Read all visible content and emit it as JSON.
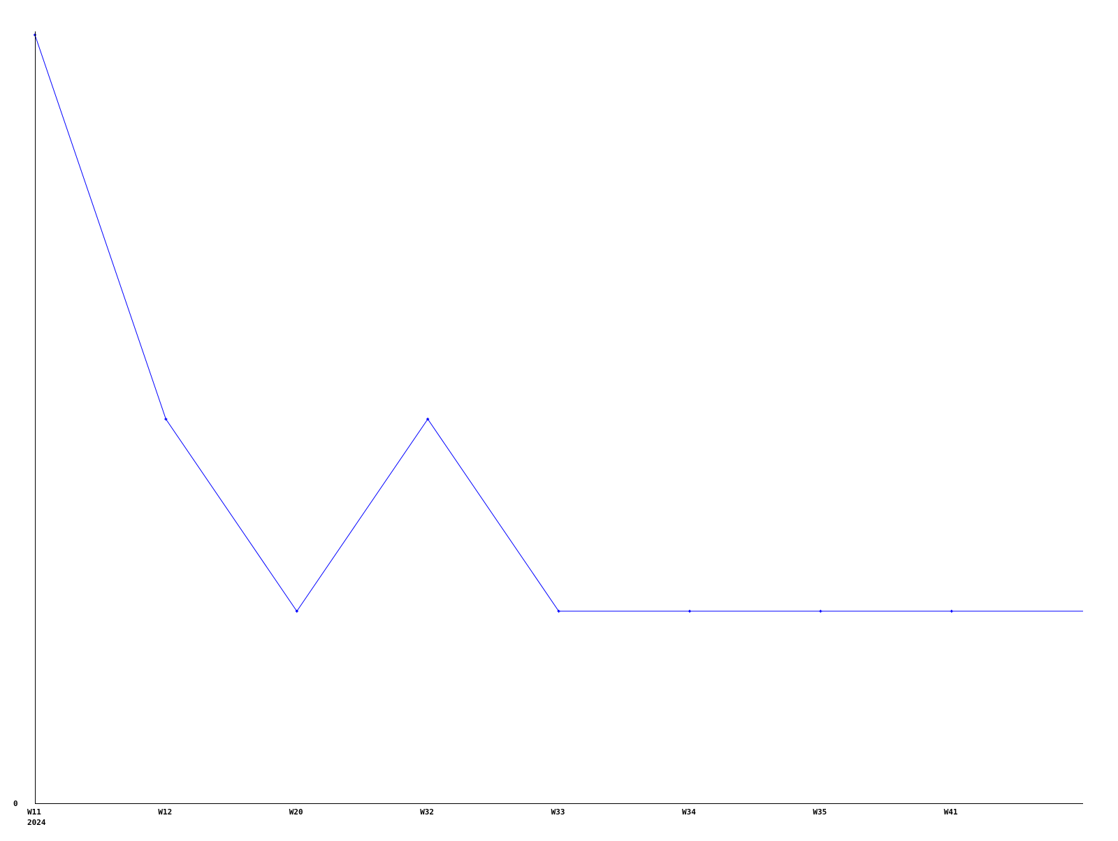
{
  "chart_data": {
    "type": "line",
    "categories": [
      "W11",
      "W12",
      "W20",
      "W32",
      "W33",
      "W34",
      "W35",
      "W41"
    ],
    "year_label": "2024",
    "series": [
      {
        "values": [
          4,
          2,
          1,
          2,
          1,
          1,
          1,
          1
        ],
        "color": "#0000ff"
      }
    ],
    "y_tick_labels": [
      "0"
    ],
    "ylim": [
      0,
      4
    ],
    "grid": false,
    "line_continues_past_last_point": true
  }
}
